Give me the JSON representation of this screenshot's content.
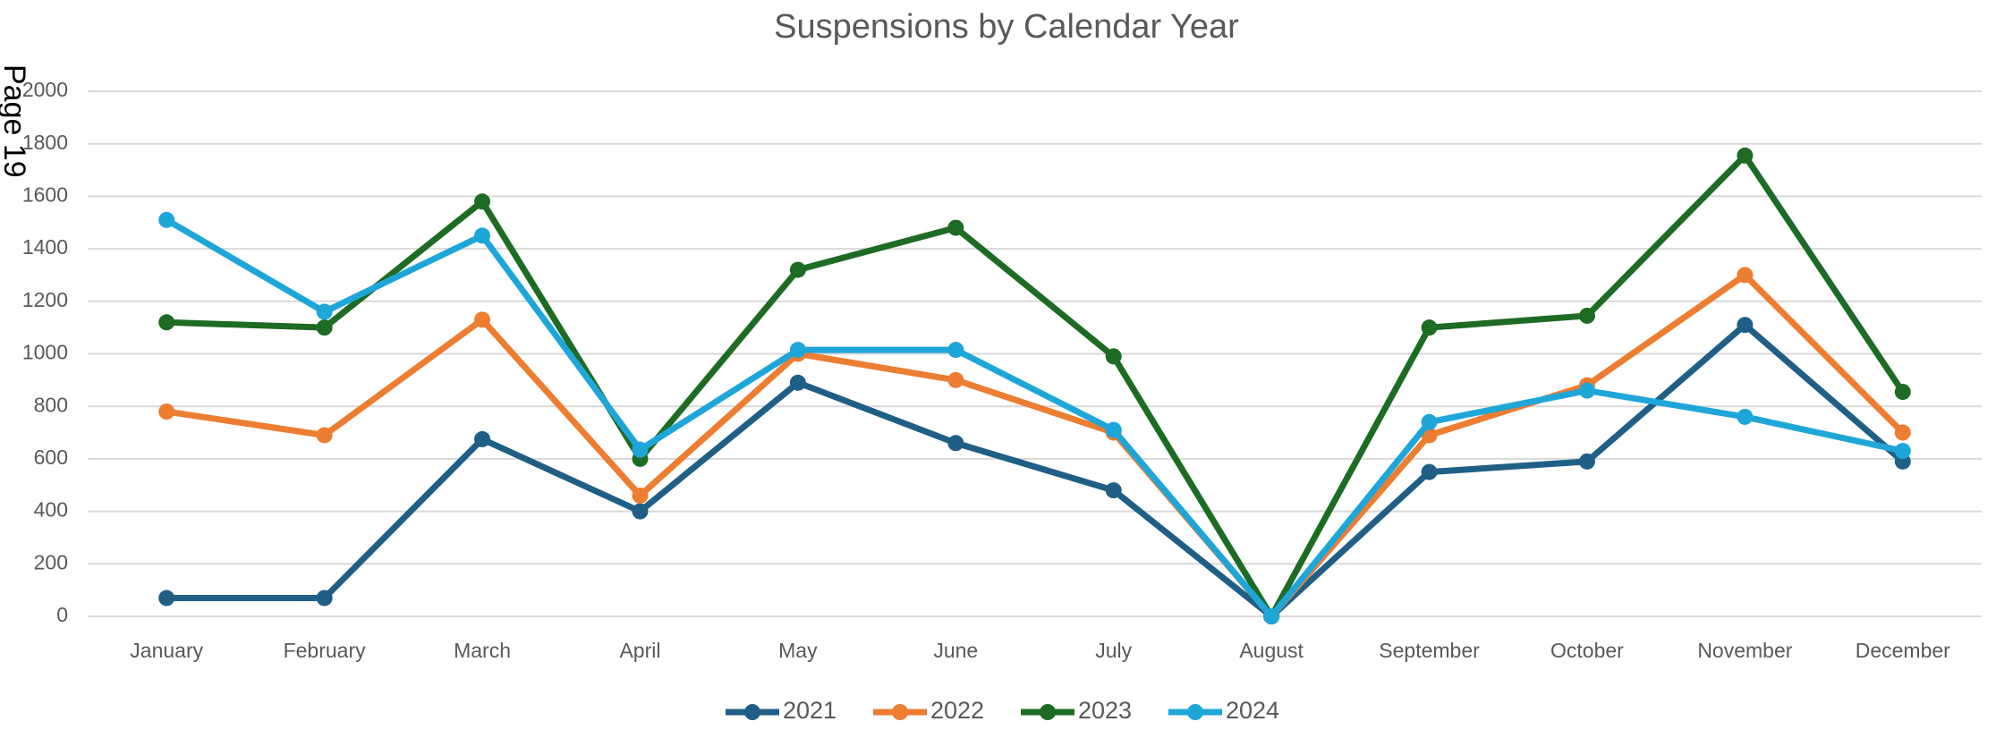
{
  "page_label": "Page 19",
  "chart_data": {
    "type": "line",
    "title": "Suspensions by Calendar Year",
    "categories": [
      "January",
      "February",
      "March",
      "April",
      "May",
      "June",
      "July",
      "August",
      "September",
      "October",
      "November",
      "December"
    ],
    "series": [
      {
        "name": "2021",
        "color": "#1f5f85",
        "values": [
          70,
          70,
          675,
          400,
          890,
          660,
          480,
          0,
          550,
          590,
          1110,
          590
        ]
      },
      {
        "name": "2022",
        "color": "#ed7d31",
        "values": [
          780,
          690,
          1130,
          460,
          1000,
          900,
          700,
          0,
          690,
          880,
          1300,
          700
        ]
      },
      {
        "name": "2023",
        "color": "#1e6b24",
        "values": [
          1120,
          1100,
          1580,
          600,
          1320,
          1480,
          990,
          0,
          1100,
          1145,
          1755,
          855
        ]
      },
      {
        "name": "2024",
        "color": "#1ea6d9",
        "values": [
          1510,
          1160,
          1450,
          635,
          1015,
          1015,
          710,
          0,
          740,
          860,
          760,
          630
        ]
      }
    ],
    "ylim": [
      0,
      2000
    ],
    "yticks": [
      0,
      200,
      400,
      600,
      800,
      1000,
      1200,
      1400,
      1600,
      1800,
      2000
    ],
    "grid": true,
    "legend": "bottom"
  }
}
